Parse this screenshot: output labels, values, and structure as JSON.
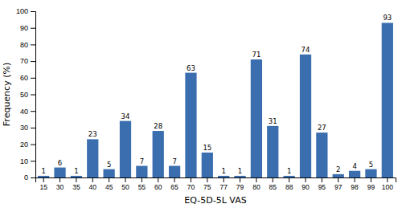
{
  "chart_data": {
    "type": "bar",
    "categories": [
      "15",
      "30",
      "35",
      "40",
      "45",
      "50",
      "55",
      "60",
      "65",
      "70",
      "75",
      "77",
      "79",
      "80",
      "85",
      "88",
      "90",
      "95",
      "97",
      "98",
      "99",
      "100"
    ],
    "values": [
      1,
      6,
      1,
      23,
      5,
      34,
      7,
      28,
      7,
      63,
      15,
      1,
      1,
      71,
      31,
      1,
      74,
      27,
      2,
      4,
      5,
      93
    ],
    "color": "#3A6EAF",
    "xlabel": "EQ-5D-5L VAS",
    "ylabel": "Frequency (%)",
    "ylim": [
      0,
      100
    ],
    "yticks": [
      0,
      10,
      20,
      30,
      40,
      50,
      60,
      70,
      80,
      90,
      100
    ],
    "data_labels": true,
    "grid": false
  }
}
